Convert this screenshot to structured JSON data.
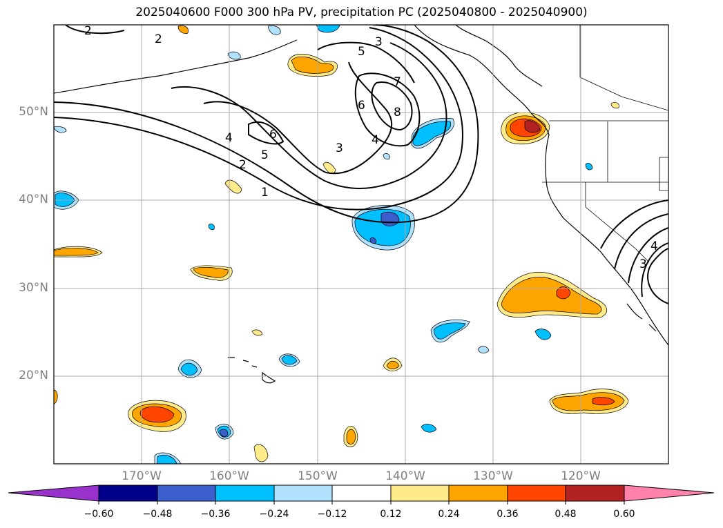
{
  "title": "2025040600 F000 300 hPa PV, precipitation PC (2025040800 - 2025040900)",
  "lat_labels": [
    "50°N",
    "40°N",
    "30°N",
    "20°N"
  ],
  "lon_labels": [
    "170°W",
    "160°W",
    "150°W",
    "140°W",
    "130°W",
    "120°W"
  ],
  "colorbar": {
    "ticks": [
      "−0.60",
      "−0.48",
      "−0.36",
      "−0.24",
      "−0.12",
      "0.12",
      "0.24",
      "0.36",
      "0.48",
      "0.60"
    ],
    "colors": [
      "#9932cc",
      "#00008b",
      "#3a5fcd",
      "#00bfff",
      "#b0e2ff",
      "#ffffff",
      "#ffeb8a",
      "#ffa500",
      "#ff4500",
      "#b22222",
      "#ff82ab"
    ]
  },
  "contour_labels": [
    "2",
    "2",
    "3",
    "5",
    "7",
    "8",
    "6",
    "4",
    "3",
    "6",
    "5",
    "4",
    "2",
    "1",
    "3",
    "4"
  ]
}
